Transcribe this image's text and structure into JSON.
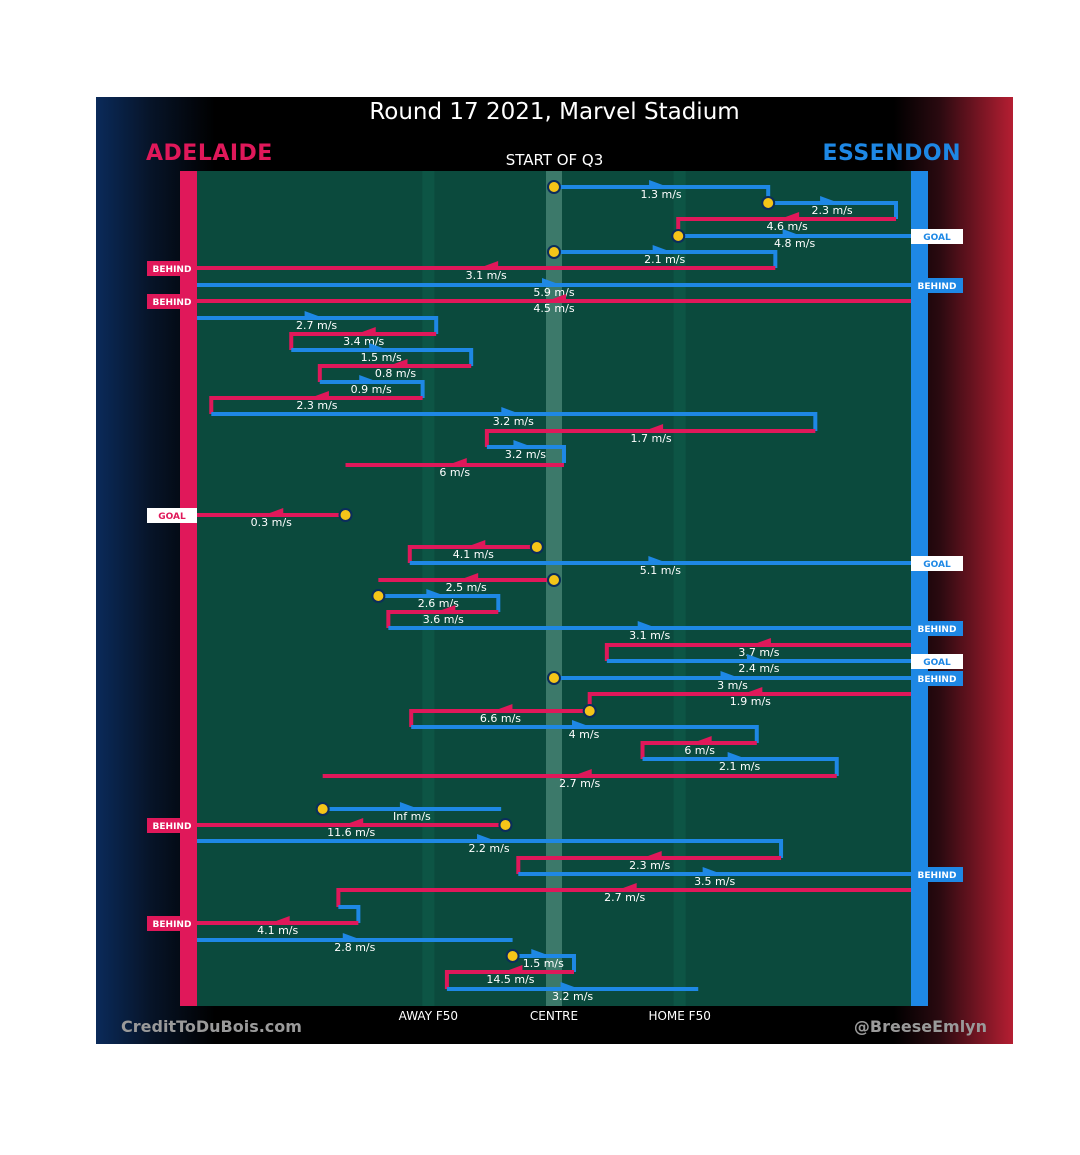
{
  "title": "Round 17 2021, Marvel Stadium",
  "subtitle": "START OF Q3",
  "teams": {
    "left": "ADELAIDE",
    "right": "ESSENDON"
  },
  "axis_labels": {
    "away_f50": "AWAY F50",
    "centre": "CENTRE",
    "home_f50": "HOME F50"
  },
  "credits": {
    "left": "CreditToDuBois.com",
    "right": "@BreeseEmlyn"
  },
  "colors": {
    "adelaide": "#e0185a",
    "essendon": "#1e88e5",
    "field": "#0b4a3d",
    "stoppage": "#f5c518"
  },
  "chart_data": {
    "type": "line",
    "x_range": [
      0,
      100
    ],
    "x_ticks": [
      {
        "label": "AWAY F50",
        "value": 32.4
      },
      {
        "label": "CENTRE",
        "value": 50
      },
      {
        "label": "HOME F50",
        "value": 67.6
      }
    ],
    "chains": [
      {
        "team": "essendon",
        "y": 187,
        "from": 50,
        "to": 80,
        "speed": "1.3 m/s",
        "start": "stoppage",
        "turn": 203,
        "end": null
      },
      {
        "team": "essendon",
        "y": 203,
        "from": 80,
        "to": 97.9,
        "speed": "2.3 m/s",
        "start": "stoppage",
        "turn": 219,
        "end": null
      },
      {
        "team": "adelaide",
        "y": 219,
        "from": 97.9,
        "to": 67.4,
        "speed": "4.6 m/s",
        "start": null,
        "turn": 235,
        "end": null
      },
      {
        "team": "essendon",
        "y": 236,
        "from": 67.4,
        "to": 100,
        "speed": "4.8 m/s",
        "start": "stoppage",
        "turn": null,
        "end": "GOAL"
      },
      {
        "team": "essendon",
        "y": 252,
        "from": 50,
        "to": 81,
        "speed": "2.1 m/s",
        "start": "stoppage",
        "turn": 268,
        "end": null
      },
      {
        "team": "adelaide",
        "y": 268,
        "from": 81,
        "to": 0,
        "speed": "3.1 m/s",
        "start": null,
        "turn": null,
        "end": "BEHIND"
      },
      {
        "team": "essendon",
        "y": 285,
        "from": 0,
        "to": 100,
        "speed": "5.9 m/s",
        "start": null,
        "turn": null,
        "end": "BEHIND"
      },
      {
        "team": "adelaide",
        "y": 301,
        "from": 100,
        "to": 0,
        "speed": "4.5 m/s",
        "start": null,
        "turn": null,
        "end": "BEHIND"
      },
      {
        "team": "essendon",
        "y": 318,
        "from": 0,
        "to": 33.5,
        "speed": "2.7 m/s",
        "start": null,
        "turn": 334,
        "end": null
      },
      {
        "team": "adelaide",
        "y": 334,
        "from": 33.5,
        "to": 13.2,
        "speed": "3.4 m/s",
        "start": null,
        "turn": 350,
        "end": null
      },
      {
        "team": "essendon",
        "y": 350,
        "from": 13.2,
        "to": 38.4,
        "speed": "1.5 m/s",
        "start": null,
        "turn": 366,
        "end": null
      },
      {
        "team": "adelaide",
        "y": 366,
        "from": 38.4,
        "to": 17.2,
        "speed": "0.8 m/s",
        "start": null,
        "turn": 382,
        "end": null
      },
      {
        "team": "essendon",
        "y": 382,
        "from": 17.2,
        "to": 31.6,
        "speed": "0.9 m/s",
        "start": null,
        "turn": 398,
        "end": null
      },
      {
        "team": "adelaide",
        "y": 398,
        "from": 31.6,
        "to": 2,
        "speed": "2.3 m/s",
        "start": null,
        "turn": 414,
        "end": null
      },
      {
        "team": "essendon",
        "y": 414,
        "from": 2,
        "to": 86.6,
        "speed": "3.2 m/s",
        "start": null,
        "turn": 431,
        "end": null
      },
      {
        "team": "adelaide",
        "y": 431,
        "from": 86.6,
        "to": 40.6,
        "speed": "1.7 m/s",
        "start": null,
        "turn": 447,
        "end": null
      },
      {
        "team": "essendon",
        "y": 447,
        "from": 40.6,
        "to": 51.4,
        "speed": "3.2 m/s",
        "start": null,
        "turn": 463,
        "end": null
      },
      {
        "team": "adelaide",
        "y": 465,
        "from": 51.4,
        "to": 20.8,
        "speed": "6 m/s",
        "start": null,
        "turn": null,
        "end": null
      },
      {
        "team": "adelaide",
        "y": 515,
        "from": 20.8,
        "to": 0,
        "speed": "0.3 m/s",
        "start": "stoppage",
        "turn": null,
        "end": "GOAL"
      },
      {
        "team": "adelaide",
        "y": 547,
        "from": 47.6,
        "to": 29.8,
        "speed": "4.1 m/s",
        "start": "stoppage",
        "turn": 563,
        "end": null
      },
      {
        "team": "essendon",
        "y": 563,
        "from": 29.8,
        "to": 100,
        "speed": "5.1 m/s",
        "start": null,
        "turn": null,
        "end": "GOAL"
      },
      {
        "team": "adelaide",
        "y": 580,
        "from": 50,
        "to": 25.4,
        "speed": "2.5 m/s",
        "start": "stoppage",
        "turn": null,
        "end": null
      },
      {
        "team": "essendon",
        "y": 596,
        "from": 25.4,
        "to": 42.2,
        "speed": "2.6 m/s",
        "start": "stoppage",
        "turn": 612,
        "end": null
      },
      {
        "team": "adelaide",
        "y": 612,
        "from": 42.2,
        "to": 26.8,
        "speed": "3.6 m/s",
        "start": null,
        "turn": 628,
        "end": null
      },
      {
        "team": "essendon",
        "y": 628,
        "from": 26.8,
        "to": 100,
        "speed": "3.1 m/s",
        "start": null,
        "turn": null,
        "end": "BEHIND"
      },
      {
        "team": "adelaide",
        "y": 645,
        "from": 100,
        "to": 57.4,
        "speed": "3.7 m/s",
        "start": null,
        "turn": 661,
        "end": null
      },
      {
        "team": "essendon",
        "y": 661,
        "from": 57.4,
        "to": 100,
        "speed": "2.4 m/s",
        "start": null,
        "turn": null,
        "end": "GOAL"
      },
      {
        "team": "essendon",
        "y": 678,
        "from": 50,
        "to": 100,
        "speed": "3 m/s",
        "start": "stoppage",
        "turn": null,
        "end": "BEHIND"
      },
      {
        "team": "adelaide",
        "y": 694,
        "from": 100,
        "to": 55,
        "speed": "1.9 m/s",
        "start": null,
        "turn": 710,
        "end": null
      },
      {
        "team": "adelaide",
        "y": 711,
        "from": 55,
        "to": 30,
        "speed": "6.6 m/s",
        "start": "stoppage",
        "turn": 727,
        "end": null
      },
      {
        "team": "essendon",
        "y": 727,
        "from": 30,
        "to": 78.4,
        "speed": "4 m/s",
        "start": null,
        "turn": 743,
        "end": null
      },
      {
        "team": "adelaide",
        "y": 743,
        "from": 78.4,
        "to": 62.4,
        "speed": "6 m/s",
        "start": null,
        "turn": 759,
        "end": null
      },
      {
        "team": "essendon",
        "y": 759,
        "from": 62.4,
        "to": 89.6,
        "speed": "2.1 m/s",
        "start": null,
        "turn": 776,
        "end": null
      },
      {
        "team": "adelaide",
        "y": 776,
        "from": 89.6,
        "to": 17.6,
        "speed": "2.7 m/s",
        "start": null,
        "turn": null,
        "end": null
      },
      {
        "team": "essendon",
        "y": 809,
        "from": 17.6,
        "to": 42.6,
        "speed": "Inf m/s",
        "start": "stoppage",
        "turn": null,
        "end": null
      },
      {
        "team": "adelaide",
        "y": 825,
        "from": 43.2,
        "to": 0,
        "speed": "11.6 m/s",
        "start": "stoppage",
        "turn": null,
        "end": "BEHIND"
      },
      {
        "team": "essendon",
        "y": 841,
        "from": 0,
        "to": 81.8,
        "speed": "2.2 m/s",
        "start": null,
        "turn": 858,
        "end": null
      },
      {
        "team": "adelaide",
        "y": 858,
        "from": 81.8,
        "to": 45,
        "speed": "2.3 m/s",
        "start": null,
        "turn": 874,
        "end": null
      },
      {
        "team": "essendon",
        "y": 874,
        "from": 45,
        "to": 100,
        "speed": "3.5 m/s",
        "start": null,
        "turn": null,
        "end": "BEHIND"
      },
      {
        "team": "adelaide",
        "y": 890,
        "from": 100,
        "to": 19.8,
        "speed": "2.7 m/s",
        "start": null,
        "turn": 907,
        "end": null
      },
      {
        "team": "essendon",
        "y": 907,
        "from": 19.8,
        "to": 22.6,
        "speed": "",
        "start": null,
        "turn": 923,
        "end": null
      },
      {
        "team": "adelaide",
        "y": 923,
        "from": 22.6,
        "to": 0,
        "speed": "4.1 m/s",
        "start": null,
        "turn": null,
        "end": "BEHIND"
      },
      {
        "team": "essendon",
        "y": 940,
        "from": 0,
        "to": 44.2,
        "speed": "2.8 m/s",
        "start": null,
        "turn": null,
        "end": null
      },
      {
        "team": "essendon",
        "y": 956,
        "from": 44.2,
        "to": 52.8,
        "speed": "1.5 m/s",
        "start": "stoppage",
        "turn": 972,
        "end": null
      },
      {
        "team": "adelaide",
        "y": 972,
        "from": 52.8,
        "to": 35,
        "speed": "14.5 m/s",
        "start": null,
        "turn": 989,
        "end": null
      },
      {
        "team": "essendon",
        "y": 989,
        "from": 35,
        "to": 70.2,
        "speed": "3.2 m/s",
        "start": null,
        "turn": null,
        "end": null
      }
    ]
  }
}
